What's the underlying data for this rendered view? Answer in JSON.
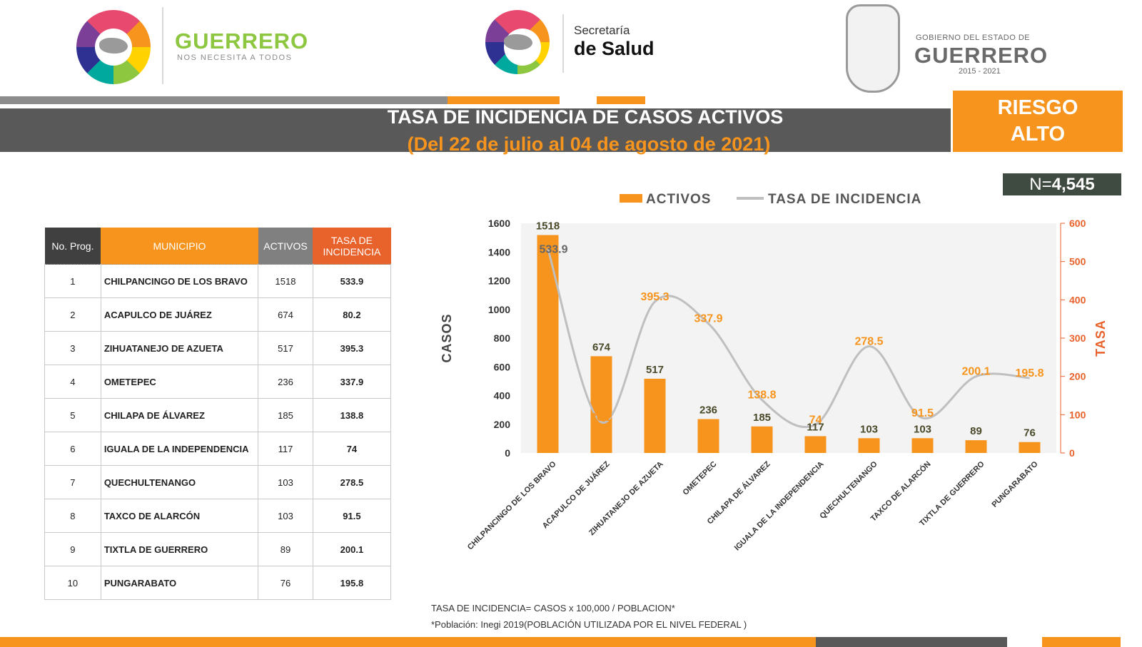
{
  "header": {
    "guerrero_brand": "GUERRERO",
    "guerrero_slogan": "NOS NECESITA A TODOS",
    "salud_line1": "Secretaría",
    "salud_line2": "de Salud",
    "gob_line1": "GOBIERNO DEL ESTADO DE",
    "gob_line2": "GUERRERO",
    "gob_years": "2015 - 2021"
  },
  "title": {
    "main": "TASA DE INCIDENCIA DE CASOS ACTIVOS",
    "sub": "(Del 22 de julio al 04 de agosto de 2021)"
  },
  "risk": {
    "line1": "RIESGO",
    "line2": "ALTO"
  },
  "total": {
    "label": "N=",
    "value": "4,545"
  },
  "colors": {
    "orange": "#f7941d",
    "dark": "#595959",
    "line": "#bfbfbf",
    "red_orange": "#e8622b"
  },
  "table": {
    "headers": [
      "No. Prog.",
      "MUNICIPIO",
      "ACTIVOS",
      "TASA DE INCIDENCIA"
    ],
    "rows": [
      {
        "no": "1",
        "municipio": "CHILPANCINGO DE LOS BRAVO",
        "activos": "1518",
        "tasa": "533.9"
      },
      {
        "no": "2",
        "municipio": "ACAPULCO DE JUÁREZ",
        "activos": "674",
        "tasa": "80.2"
      },
      {
        "no": "3",
        "municipio": "ZIHUATANEJO DE AZUETA",
        "activos": "517",
        "tasa": "395.3"
      },
      {
        "no": "4",
        "municipio": "OMETEPEC",
        "activos": "236",
        "tasa": "337.9"
      },
      {
        "no": "5",
        "municipio": "CHILAPA DE ÁLVAREZ",
        "activos": "185",
        "tasa": "138.8"
      },
      {
        "no": "6",
        "municipio": "IGUALA DE LA INDEPENDENCIA",
        "activos": "117",
        "tasa": "74"
      },
      {
        "no": "7",
        "municipio": "QUECHULTENANGO",
        "activos": "103",
        "tasa": "278.5"
      },
      {
        "no": "8",
        "municipio": "TAXCO DE ALARCÓN",
        "activos": "103",
        "tasa": "91.5"
      },
      {
        "no": "9",
        "municipio": "TIXTLA DE GUERRERO",
        "activos": "89",
        "tasa": "200.1"
      },
      {
        "no": "10",
        "municipio": "PUNGARABATO",
        "activos": "76",
        "tasa": "195.8"
      }
    ]
  },
  "chart_data": {
    "type": "bar",
    "categories": [
      "CHILPANCINGO DE LOS BRAVO",
      "ACAPULCO DE JUÁREZ",
      "ZIHUATANEJO DE AZUETA",
      "OMETEPEC",
      "CHILAPA DE ÁLVAREZ",
      "IGUALA DE LA INDEPENDENCIA",
      "QUECHULTENANGO",
      "TAXCO DE ALARCÓN",
      "TIXTLA DE GUERRERO",
      "PUNGARABATO"
    ],
    "series": [
      {
        "name": "ACTIVOS",
        "type": "bar",
        "axis": "left",
        "values": [
          1518,
          674,
          517,
          236,
          185,
          117,
          103,
          103,
          89,
          76
        ]
      },
      {
        "name": "TASA DE INCIDENCIA",
        "type": "line",
        "axis": "right",
        "values": [
          533.9,
          80.2,
          395.3,
          337.9,
          138.8,
          74,
          278.5,
          91.5,
          200.1,
          195.8
        ]
      }
    ],
    "ylabel": "CASOS",
    "ylabel_right": "TASA",
    "ylim": [
      0,
      1600
    ],
    "ylim_right": [
      0,
      600
    ],
    "yticks": [
      0,
      200,
      400,
      600,
      800,
      1000,
      1200,
      1400,
      1600
    ],
    "yticks_right": [
      0,
      100,
      200,
      300,
      400,
      500,
      600
    ],
    "legend_position": "top",
    "grid": false
  },
  "footnote": {
    "line1": "TASA DE INCIDENCIA= CASOS x 100,000 / POBLACION*",
    "line2": "*Población: Inegi 2019(POBLACIÓN UTILIZADA POR EL NIVEL FEDERAL )"
  }
}
